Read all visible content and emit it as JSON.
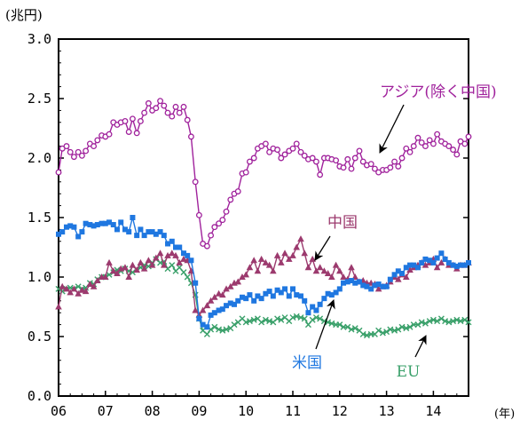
{
  "chart_data": {
    "type": "line",
    "title": "",
    "y_unit_label": "(兆円)",
    "x_unit_label": "(年)",
    "xlim": [
      2006.0,
      2014.75
    ],
    "ylim": [
      0,
      3.0
    ],
    "x_tick_values": [
      2006,
      2007,
      2008,
      2009,
      2010,
      2011,
      2012,
      2013,
      2014
    ],
    "x_tick_labels": [
      "06",
      "07",
      "08",
      "09",
      "10",
      "11",
      "12",
      "13",
      "14"
    ],
    "y_tick_values": [
      0,
      0.5,
      1.0,
      1.5,
      2.0,
      2.5,
      3.0
    ],
    "y_tick_labels": [
      "0.0",
      "0.5",
      "1.0",
      "1.5",
      "2.0",
      "2.5",
      "3.0"
    ],
    "grid": false,
    "legend": "none (direct labels with arrows)",
    "series": [
      {
        "name": "アジア(除く中国)",
        "color": "#a0229c",
        "marker": "circle",
        "x": [
          2006.0,
          2006.08,
          2006.17,
          2006.25,
          2006.33,
          2006.42,
          2006.5,
          2006.58,
          2006.67,
          2006.75,
          2006.83,
          2006.92,
          2007.0,
          2007.08,
          2007.17,
          2007.25,
          2007.33,
          2007.42,
          2007.5,
          2007.58,
          2007.67,
          2007.75,
          2007.83,
          2007.92,
          2008.0,
          2008.08,
          2008.17,
          2008.25,
          2008.33,
          2008.42,
          2008.5,
          2008.58,
          2008.67,
          2008.75,
          2008.83,
          2008.92,
          2009.0,
          2009.08,
          2009.17,
          2009.25,
          2009.33,
          2009.42,
          2009.5,
          2009.58,
          2009.67,
          2009.75,
          2009.83,
          2009.92,
          2010.0,
          2010.08,
          2010.17,
          2010.25,
          2010.33,
          2010.42,
          2010.5,
          2010.58,
          2010.67,
          2010.75,
          2010.83,
          2010.92,
          2011.0,
          2011.08,
          2011.17,
          2011.25,
          2011.33,
          2011.42,
          2011.5,
          2011.58,
          2011.67,
          2011.75,
          2011.83,
          2011.92,
          2012.0,
          2012.08,
          2012.17,
          2012.25,
          2012.33,
          2012.42,
          2012.5,
          2012.58,
          2012.67,
          2012.75,
          2012.83,
          2012.92,
          2013.0,
          2013.08,
          2013.17,
          2013.25,
          2013.33,
          2013.42,
          2013.5,
          2013.58,
          2013.67,
          2013.75,
          2013.83,
          2013.92,
          2014.0,
          2014.08,
          2014.17,
          2014.25,
          2014.33,
          2014.42,
          2014.5,
          2014.58,
          2014.67,
          2014.75
        ],
        "values": [
          1.88,
          2.08,
          2.1,
          2.05,
          2.01,
          2.05,
          2.02,
          2.06,
          2.12,
          2.1,
          2.15,
          2.19,
          2.18,
          2.2,
          2.3,
          2.28,
          2.3,
          2.31,
          2.22,
          2.33,
          2.21,
          2.31,
          2.38,
          2.46,
          2.4,
          2.42,
          2.48,
          2.44,
          2.38,
          2.35,
          2.43,
          2.38,
          2.43,
          2.32,
          2.18,
          1.8,
          1.52,
          1.28,
          1.26,
          1.35,
          1.42,
          1.45,
          1.48,
          1.55,
          1.65,
          1.7,
          1.72,
          1.87,
          1.88,
          1.97,
          2.0,
          2.08,
          2.1,
          2.12,
          2.05,
          2.08,
          2.07,
          2.0,
          2.03,
          2.06,
          2.08,
          2.12,
          2.05,
          2.02,
          1.99,
          2.0,
          1.97,
          1.86,
          2.0,
          2.0,
          1.99,
          1.98,
          1.93,
          1.92,
          1.99,
          1.91,
          2.0,
          2.06,
          1.97,
          1.94,
          1.95,
          1.91,
          1.88,
          1.9,
          1.9,
          1.92,
          1.97,
          1.93,
          2.0,
          2.08,
          2.05,
          2.1,
          2.17,
          2.13,
          2.1,
          2.15,
          2.12,
          2.2,
          2.14,
          2.12,
          2.1,
          2.07,
          2.03,
          2.14,
          2.12,
          2.18
        ]
      },
      {
        "name": "米国",
        "color": "#1f77e0",
        "marker": "square",
        "x": [
          2006.0,
          2006.08,
          2006.17,
          2006.25,
          2006.33,
          2006.42,
          2006.5,
          2006.58,
          2006.67,
          2006.75,
          2006.83,
          2006.92,
          2007.0,
          2007.08,
          2007.17,
          2007.25,
          2007.33,
          2007.42,
          2007.5,
          2007.58,
          2007.67,
          2007.75,
          2007.83,
          2007.92,
          2008.0,
          2008.08,
          2008.17,
          2008.25,
          2008.33,
          2008.42,
          2008.5,
          2008.58,
          2008.67,
          2008.75,
          2008.83,
          2008.92,
          2009.0,
          2009.08,
          2009.17,
          2009.25,
          2009.33,
          2009.42,
          2009.5,
          2009.58,
          2009.67,
          2009.75,
          2009.83,
          2009.92,
          2010.0,
          2010.08,
          2010.17,
          2010.25,
          2010.33,
          2010.42,
          2010.5,
          2010.58,
          2010.67,
          2010.75,
          2010.83,
          2010.92,
          2011.0,
          2011.08,
          2011.17,
          2011.25,
          2011.33,
          2011.42,
          2011.5,
          2011.58,
          2011.67,
          2011.75,
          2011.83,
          2011.92,
          2012.0,
          2012.08,
          2012.17,
          2012.25,
          2012.33,
          2012.42,
          2012.5,
          2012.58,
          2012.67,
          2012.75,
          2012.83,
          2012.92,
          2013.0,
          2013.08,
          2013.17,
          2013.25,
          2013.33,
          2013.42,
          2013.5,
          2013.58,
          2013.67,
          2013.75,
          2013.83,
          2013.92,
          2014.0,
          2014.08,
          2014.17,
          2014.25,
          2014.33,
          2014.42,
          2014.5,
          2014.58,
          2014.67,
          2014.75
        ],
        "values": [
          1.36,
          1.38,
          1.42,
          1.43,
          1.42,
          1.34,
          1.38,
          1.45,
          1.44,
          1.43,
          1.44,
          1.45,
          1.45,
          1.46,
          1.44,
          1.4,
          1.46,
          1.4,
          1.38,
          1.5,
          1.35,
          1.4,
          1.35,
          1.38,
          1.38,
          1.36,
          1.38,
          1.35,
          1.28,
          1.3,
          1.25,
          1.25,
          1.2,
          1.18,
          1.14,
          0.95,
          0.65,
          0.6,
          0.58,
          0.68,
          0.7,
          0.72,
          0.73,
          0.76,
          0.78,
          0.77,
          0.8,
          0.83,
          0.82,
          0.85,
          0.8,
          0.84,
          0.82,
          0.86,
          0.88,
          0.84,
          0.89,
          0.87,
          0.9,
          0.84,
          0.9,
          0.85,
          0.84,
          0.8,
          0.7,
          0.75,
          0.72,
          0.77,
          0.82,
          0.86,
          0.85,
          0.87,
          0.9,
          0.95,
          0.96,
          0.97,
          0.95,
          0.96,
          0.93,
          0.92,
          0.9,
          0.93,
          0.94,
          0.92,
          0.92,
          0.98,
          1.02,
          1.05,
          1.03,
          1.08,
          1.1,
          1.1,
          1.08,
          1.12,
          1.15,
          1.14,
          1.12,
          1.16,
          1.2,
          1.15,
          1.12,
          1.1,
          1.09,
          1.1,
          1.1,
          1.12
        ]
      },
      {
        "name": "中国",
        "color": "#9c3a6e",
        "marker": "triangle",
        "x": [
          2006.0,
          2006.08,
          2006.17,
          2006.25,
          2006.33,
          2006.42,
          2006.5,
          2006.58,
          2006.67,
          2006.75,
          2006.83,
          2006.92,
          2007.0,
          2007.08,
          2007.17,
          2007.25,
          2007.33,
          2007.42,
          2007.5,
          2007.58,
          2007.67,
          2007.75,
          2007.83,
          2007.92,
          2008.0,
          2008.08,
          2008.17,
          2008.25,
          2008.33,
          2008.42,
          2008.5,
          2008.58,
          2008.67,
          2008.75,
          2008.83,
          2008.92,
          2009.0,
          2009.08,
          2009.17,
          2009.25,
          2009.33,
          2009.42,
          2009.5,
          2009.58,
          2009.67,
          2009.75,
          2009.83,
          2009.92,
          2010.0,
          2010.08,
          2010.17,
          2010.25,
          2010.33,
          2010.42,
          2010.5,
          2010.58,
          2010.67,
          2010.75,
          2010.83,
          2010.92,
          2011.0,
          2011.08,
          2011.17,
          2011.25,
          2011.33,
          2011.42,
          2011.5,
          2011.58,
          2011.67,
          2011.75,
          2011.83,
          2011.92,
          2012.0,
          2012.08,
          2012.17,
          2012.25,
          2012.33,
          2012.42,
          2012.5,
          2012.58,
          2012.67,
          2012.75,
          2012.83,
          2012.92,
          2013.0,
          2013.08,
          2013.17,
          2013.25,
          2013.33,
          2013.42,
          2013.5,
          2013.58,
          2013.67,
          2013.75,
          2013.83,
          2013.92,
          2014.0,
          2014.08,
          2014.17,
          2014.25,
          2014.33,
          2014.42,
          2014.5,
          2014.58,
          2014.67,
          2014.75
        ],
        "values": [
          0.75,
          0.92,
          0.9,
          0.87,
          0.9,
          0.86,
          0.89,
          0.88,
          0.94,
          0.92,
          0.97,
          1.0,
          1.0,
          1.12,
          1.05,
          1.03,
          1.07,
          1.08,
          1.0,
          1.1,
          1.06,
          1.12,
          1.07,
          1.14,
          1.1,
          1.16,
          1.2,
          1.1,
          1.18,
          1.2,
          1.18,
          1.12,
          1.15,
          1.14,
          1.05,
          0.72,
          0.68,
          0.72,
          0.76,
          0.8,
          0.83,
          0.86,
          0.85,
          0.9,
          0.92,
          0.95,
          0.96,
          1.0,
          1.02,
          1.08,
          1.14,
          1.05,
          1.15,
          1.12,
          1.1,
          1.05,
          1.18,
          1.12,
          1.2,
          1.15,
          1.18,
          1.25,
          1.32,
          1.2,
          1.08,
          1.15,
          1.05,
          1.08,
          1.05,
          1.03,
          1.0,
          1.1,
          1.05,
          1.0,
          0.98,
          1.08,
          1.0,
          0.96,
          0.97,
          0.95,
          0.95,
          0.94,
          0.9,
          0.92,
          0.93,
          0.96,
          1.0,
          0.98,
          1.02,
          1.0,
          1.06,
          1.08,
          1.1,
          1.12,
          1.1,
          1.12,
          1.15,
          1.08,
          1.12,
          1.15,
          1.1,
          1.1,
          1.07,
          1.1,
          1.1,
          1.12
        ]
      },
      {
        "name": "EU",
        "color": "#3aa06a",
        "marker": "x",
        "x": [
          2006.0,
          2006.08,
          2006.17,
          2006.25,
          2006.33,
          2006.42,
          2006.5,
          2006.58,
          2006.67,
          2006.75,
          2006.83,
          2006.92,
          2007.0,
          2007.08,
          2007.17,
          2007.25,
          2007.33,
          2007.42,
          2007.5,
          2007.58,
          2007.67,
          2007.75,
          2007.83,
          2007.92,
          2008.0,
          2008.08,
          2008.17,
          2008.25,
          2008.33,
          2008.42,
          2008.5,
          2008.58,
          2008.67,
          2008.75,
          2008.83,
          2008.92,
          2009.0,
          2009.08,
          2009.17,
          2009.25,
          2009.33,
          2009.42,
          2009.5,
          2009.58,
          2009.67,
          2009.75,
          2009.83,
          2009.92,
          2010.0,
          2010.08,
          2010.17,
          2010.25,
          2010.33,
          2010.42,
          2010.5,
          2010.58,
          2010.67,
          2010.75,
          2010.83,
          2010.92,
          2011.0,
          2011.08,
          2011.17,
          2011.25,
          2011.33,
          2011.42,
          2011.5,
          2011.58,
          2011.67,
          2011.75,
          2011.83,
          2011.92,
          2012.0,
          2012.08,
          2012.17,
          2012.25,
          2012.33,
          2012.42,
          2012.5,
          2012.58,
          2012.67,
          2012.75,
          2012.83,
          2012.92,
          2013.0,
          2013.08,
          2013.17,
          2013.25,
          2013.33,
          2013.42,
          2013.5,
          2013.58,
          2013.67,
          2013.75,
          2013.83,
          2013.92,
          2014.0,
          2014.08,
          2014.17,
          2014.25,
          2014.33,
          2014.42,
          2014.5,
          2014.58,
          2014.67,
          2014.75
        ],
        "values": [
          0.9,
          0.88,
          0.9,
          0.91,
          0.9,
          0.92,
          0.9,
          0.91,
          0.95,
          0.94,
          0.98,
          1.0,
          1.0,
          1.02,
          1.04,
          1.06,
          1.05,
          1.07,
          1.05,
          1.04,
          1.06,
          1.08,
          1.1,
          1.09,
          1.12,
          1.15,
          1.12,
          1.13,
          1.07,
          1.1,
          1.05,
          1.08,
          1.04,
          1.0,
          0.95,
          0.85,
          0.65,
          0.55,
          0.52,
          0.56,
          0.58,
          0.56,
          0.55,
          0.56,
          0.57,
          0.6,
          0.62,
          0.65,
          0.62,
          0.63,
          0.64,
          0.65,
          0.62,
          0.64,
          0.63,
          0.62,
          0.65,
          0.64,
          0.66,
          0.63,
          0.66,
          0.67,
          0.66,
          0.65,
          0.6,
          0.64,
          0.66,
          0.65,
          0.63,
          0.62,
          0.61,
          0.6,
          0.6,
          0.58,
          0.58,
          0.56,
          0.57,
          0.55,
          0.52,
          0.51,
          0.52,
          0.52,
          0.55,
          0.53,
          0.54,
          0.56,
          0.55,
          0.56,
          0.58,
          0.57,
          0.58,
          0.6,
          0.6,
          0.62,
          0.61,
          0.63,
          0.64,
          0.63,
          0.65,
          0.63,
          0.62,
          0.63,
          0.64,
          0.63,
          0.64,
          0.62
        ]
      }
    ],
    "annotations": [
      {
        "text": "アジア(除く中国)",
        "color": "#a0229c",
        "series": "アジア(除く中国)",
        "position": "upper right, arrow pointing to line near 2013"
      },
      {
        "text": "中国",
        "color": "#9c3a6e",
        "series": "中国",
        "position": "above line near 2011.5, arrow down-left"
      },
      {
        "text": "米国",
        "color": "#1f77e0",
        "series": "米国",
        "position": "below lines near 2011.5, arrow up-right"
      },
      {
        "text": "EU",
        "color": "#3aa06a",
        "series": "EU",
        "position": "lower right near 2013.5, arrow up-right"
      }
    ]
  }
}
